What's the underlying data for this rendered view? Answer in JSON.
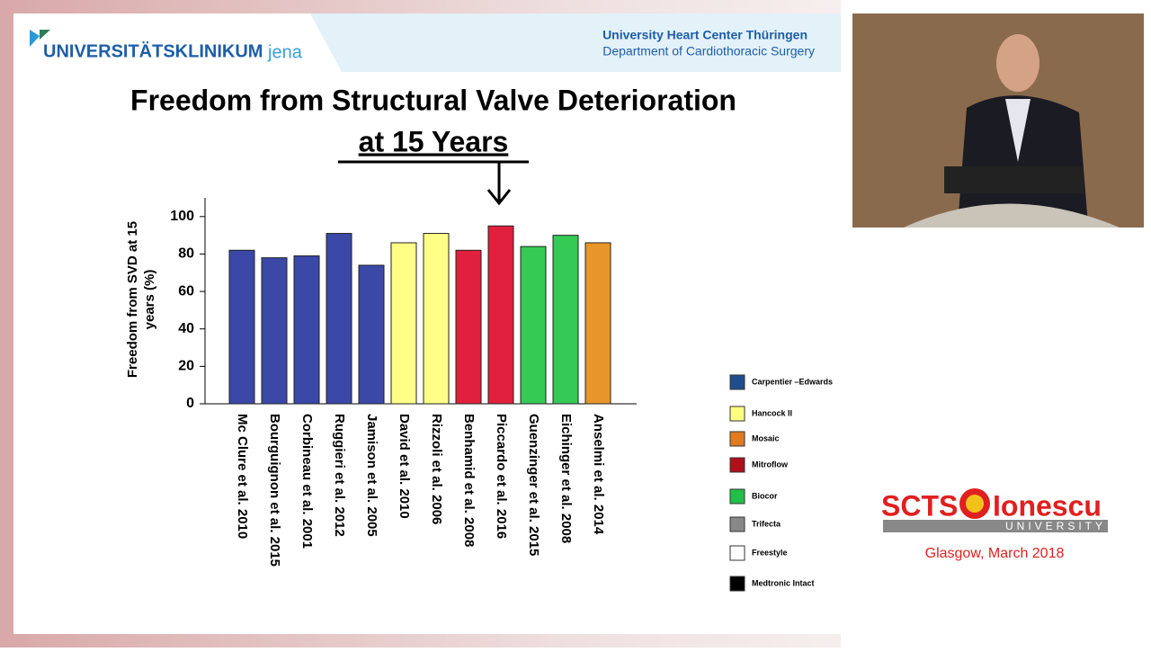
{
  "header": {
    "logo": "UNIVERSITÄTSKLINIKUM",
    "logo_suffix": "jena",
    "center": "University Heart Center Thüringen",
    "department": "Department of Cardiothoracic Surgery"
  },
  "slide_title": [
    "Freedom from Structural Valve Deterioration",
    "at 15 Years"
  ],
  "chart_data": {
    "type": "bar",
    "ylabel": [
      "Freedom from SVD at 15",
      "years (%)"
    ],
    "categories": [
      "Mc Clure et al. 2010",
      "Bourguignon et al. 2015",
      "Corbineau et al. 2001",
      "Ruggieri et al. 2012",
      "Jamison et al. 2005",
      "David et al. 2010",
      "Rizzoli et al. 2006",
      "Benhamid et al. 2008",
      "Piccardo et al. 2016",
      "Guenzinger et al. 2015",
      "Eichinger et al. 2008",
      "Anselmi et al. 2014"
    ],
    "values": [
      82,
      78,
      79,
      91,
      74,
      86,
      91,
      82,
      95,
      84,
      90,
      86
    ],
    "colors": [
      "#3b48a8",
      "#3b48a8",
      "#3b48a8",
      "#3b48a8",
      "#3b48a8",
      "#ffff88",
      "#ffff88",
      "#e0203c",
      "#e0203c",
      "#35c955",
      "#35c955",
      "#e8962a"
    ],
    "ylim": [
      0,
      110
    ],
    "yticks": [
      0,
      20,
      40,
      60,
      80,
      100
    ],
    "legend": [
      {
        "name": "Carpentier –Edwards",
        "color": "#1f4e8c"
      },
      {
        "name": "Hancock II",
        "color": "#ffff80"
      },
      {
        "name": "Mosaic",
        "color": "#e07b20"
      },
      {
        "name": "Mitroflow",
        "color": "#b0101a"
      },
      {
        "name": "Biocor",
        "color": "#22c04a"
      },
      {
        "name": "Trifecta",
        "color": "#888888"
      },
      {
        "name": "Freestyle",
        "color": "#ffffff"
      },
      {
        "name": "Medtronic Intact",
        "color": "#000000"
      }
    ]
  },
  "branding": {
    "scts": "SCTS",
    "ionescu": "Ionescu",
    "university": "UNIVERSITY",
    "event": "Glasgow, March 2018"
  }
}
